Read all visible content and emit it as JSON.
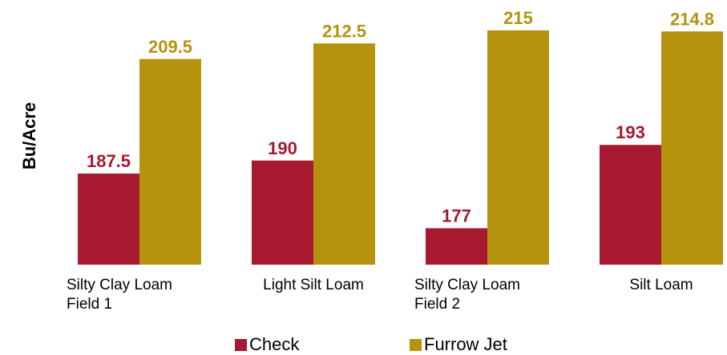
{
  "chart_data": {
    "type": "bar",
    "categories": [
      "Silty Clay Loam\nField 1",
      "Light Silt Loam",
      "Silty Clay Loam\nField 2",
      "Silt Loam"
    ],
    "series": [
      {
        "name": "Check",
        "values": [
          187.5,
          190,
          177,
          193
        ],
        "labels": [
          "187.5",
          "190",
          "177",
          "193"
        ],
        "color": "#a6192e"
      },
      {
        "name": "Furrow Jet",
        "values": [
          209.5,
          212.5,
          215,
          214.8
        ],
        "labels": [
          "209.5",
          "212.5",
          "215",
          "214.8"
        ],
        "color": "#b5930f"
      }
    ],
    "title": "",
    "xlabel": "",
    "ylabel": "Bu/Acre",
    "ylim": [
      170,
      215
    ],
    "grid": false,
    "legend_position": "bottom"
  }
}
